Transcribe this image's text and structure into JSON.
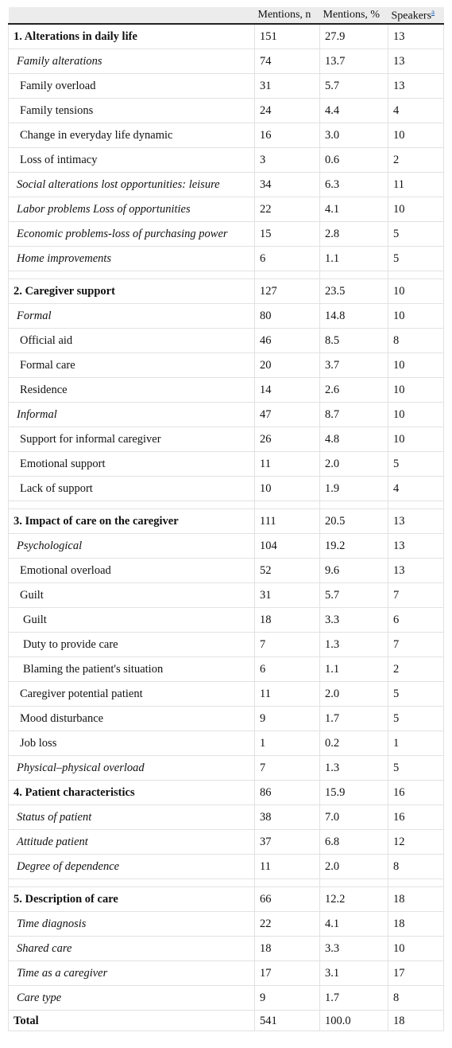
{
  "header": {
    "category": "",
    "mentions_n": "Mentions, n",
    "mentions_pct": "Mentions, %",
    "speakers": "Speakers",
    "speakers_note": "a"
  },
  "rows": [
    {
      "type": "row",
      "level": 0,
      "label": "1. Alterations in daily life",
      "n": "151",
      "pct": "27.9",
      "speakers": "13"
    },
    {
      "type": "row",
      "level": 1,
      "label": "Family alterations",
      "n": "74",
      "pct": "13.7",
      "speakers": "13"
    },
    {
      "type": "row",
      "level": 2,
      "label": "Family overload",
      "n": "31",
      "pct": "5.7",
      "speakers": "13"
    },
    {
      "type": "row",
      "level": 2,
      "label": "Family tensions",
      "n": "24",
      "pct": "4.4",
      "speakers": "4"
    },
    {
      "type": "row",
      "level": 2,
      "label": "Change in everyday life dynamic",
      "n": "16",
      "pct": "3.0",
      "speakers": "10"
    },
    {
      "type": "row",
      "level": 2,
      "label": "Loss of intimacy",
      "n": "3",
      "pct": "0.6",
      "speakers": "2"
    },
    {
      "type": "row",
      "level": 1,
      "label": "Social alterations lost opportunities: leisure",
      "n": "34",
      "pct": "6.3",
      "speakers": "11"
    },
    {
      "type": "row",
      "level": 1,
      "label": "Labor problems Loss of opportunities",
      "n": "22",
      "pct": "4.1",
      "speakers": "10"
    },
    {
      "type": "row",
      "level": 1,
      "label": "Economic problems-loss of purchasing power",
      "n": "15",
      "pct": "2.8",
      "speakers": "5"
    },
    {
      "type": "row",
      "level": 1,
      "label": "Home improvements",
      "n": "6",
      "pct": "1.1",
      "speakers": "5"
    },
    {
      "type": "spacer"
    },
    {
      "type": "row",
      "level": 0,
      "label": "2. Caregiver support",
      "n": "127",
      "pct": "23.5",
      "speakers": "10"
    },
    {
      "type": "row",
      "level": 1,
      "label": "Formal",
      "n": "80",
      "pct": "14.8",
      "speakers": "10"
    },
    {
      "type": "row",
      "level": 2,
      "label": "Official aid",
      "n": "46",
      "pct": "8.5",
      "speakers": "8"
    },
    {
      "type": "row",
      "level": 2,
      "label": "Formal care",
      "n": "20",
      "pct": "3.7",
      "speakers": "10"
    },
    {
      "type": "row",
      "level": 2,
      "label": "Residence",
      "n": "14",
      "pct": "2.6",
      "speakers": "10"
    },
    {
      "type": "row",
      "level": 1,
      "label": "Informal",
      "n": "47",
      "pct": "8.7",
      "speakers": "10"
    },
    {
      "type": "row",
      "level": 2,
      "label": "Support for informal caregiver",
      "n": "26",
      "pct": "4.8",
      "speakers": "10"
    },
    {
      "type": "row",
      "level": 2,
      "label": "Emotional support",
      "n": "11",
      "pct": "2.0",
      "speakers": "5"
    },
    {
      "type": "row",
      "level": 2,
      "label": "Lack of support",
      "n": "10",
      "pct": "1.9",
      "speakers": "4"
    },
    {
      "type": "spacer"
    },
    {
      "type": "row",
      "level": 0,
      "label": "3. Impact of care on the caregiver",
      "n": "111",
      "pct": "20.5",
      "speakers": "13"
    },
    {
      "type": "row",
      "level": 1,
      "label": "Psychological",
      "n": "104",
      "pct": "19.2",
      "speakers": "13"
    },
    {
      "type": "row",
      "level": 2,
      "label": "Emotional overload",
      "n": "52",
      "pct": "9.6",
      "speakers": "13"
    },
    {
      "type": "row",
      "level": 2,
      "label": "Guilt",
      "n": "31",
      "pct": "5.7",
      "speakers": "7"
    },
    {
      "type": "row",
      "level": 3,
      "label": "Guilt",
      "n": "18",
      "pct": "3.3",
      "speakers": "6"
    },
    {
      "type": "row",
      "level": 3,
      "label": "Duty to provide care",
      "n": "7",
      "pct": "1.3",
      "speakers": "7"
    },
    {
      "type": "row",
      "level": 3,
      "label": "Blaming the patient's situation",
      "n": "6",
      "pct": "1.1",
      "speakers": "2"
    },
    {
      "type": "row",
      "level": 2,
      "label": "Caregiver potential patient",
      "n": "11",
      "pct": "2.0",
      "speakers": "5"
    },
    {
      "type": "row",
      "level": 2,
      "label": "Mood disturbance",
      "n": "9",
      "pct": "1.7",
      "speakers": "5"
    },
    {
      "type": "row",
      "level": 2,
      "label": "Job loss",
      "n": "1",
      "pct": "0.2",
      "speakers": "1"
    },
    {
      "type": "row",
      "level": 1,
      "label": "Physical–physical overload",
      "n": "7",
      "pct": "1.3",
      "speakers": "5"
    },
    {
      "type": "row",
      "level": 0,
      "label": "4. Patient characteristics",
      "n": "86",
      "pct": "15.9",
      "speakers": "16"
    },
    {
      "type": "row",
      "level": 1,
      "label": "Status of patient",
      "n": "38",
      "pct": "7.0",
      "speakers": "16"
    },
    {
      "type": "row",
      "level": 1,
      "label": "Attitude patient",
      "n": "37",
      "pct": "6.8",
      "speakers": "12"
    },
    {
      "type": "row",
      "level": 1,
      "label": "Degree of dependence",
      "n": "11",
      "pct": "2.0",
      "speakers": "8"
    },
    {
      "type": "spacer"
    },
    {
      "type": "row",
      "level": 0,
      "label": "5. Description of care",
      "n": "66",
      "pct": "12.2",
      "speakers": "18"
    },
    {
      "type": "row",
      "level": 1,
      "label": "Time diagnosis",
      "n": "22",
      "pct": "4.1",
      "speakers": "18"
    },
    {
      "type": "row",
      "level": 1,
      "label": "Shared care",
      "n": "18",
      "pct": "3.3",
      "speakers": "10"
    },
    {
      "type": "row",
      "level": 1,
      "label": "Time as a caregiver",
      "n": "17",
      "pct": "3.1",
      "speakers": "17"
    },
    {
      "type": "row",
      "level": 1,
      "label": "Care type",
      "n": "9",
      "pct": "1.7",
      "speakers": "8"
    },
    {
      "type": "total",
      "label": "Total",
      "n": "541",
      "pct": "100.0",
      "speakers": "18"
    }
  ]
}
